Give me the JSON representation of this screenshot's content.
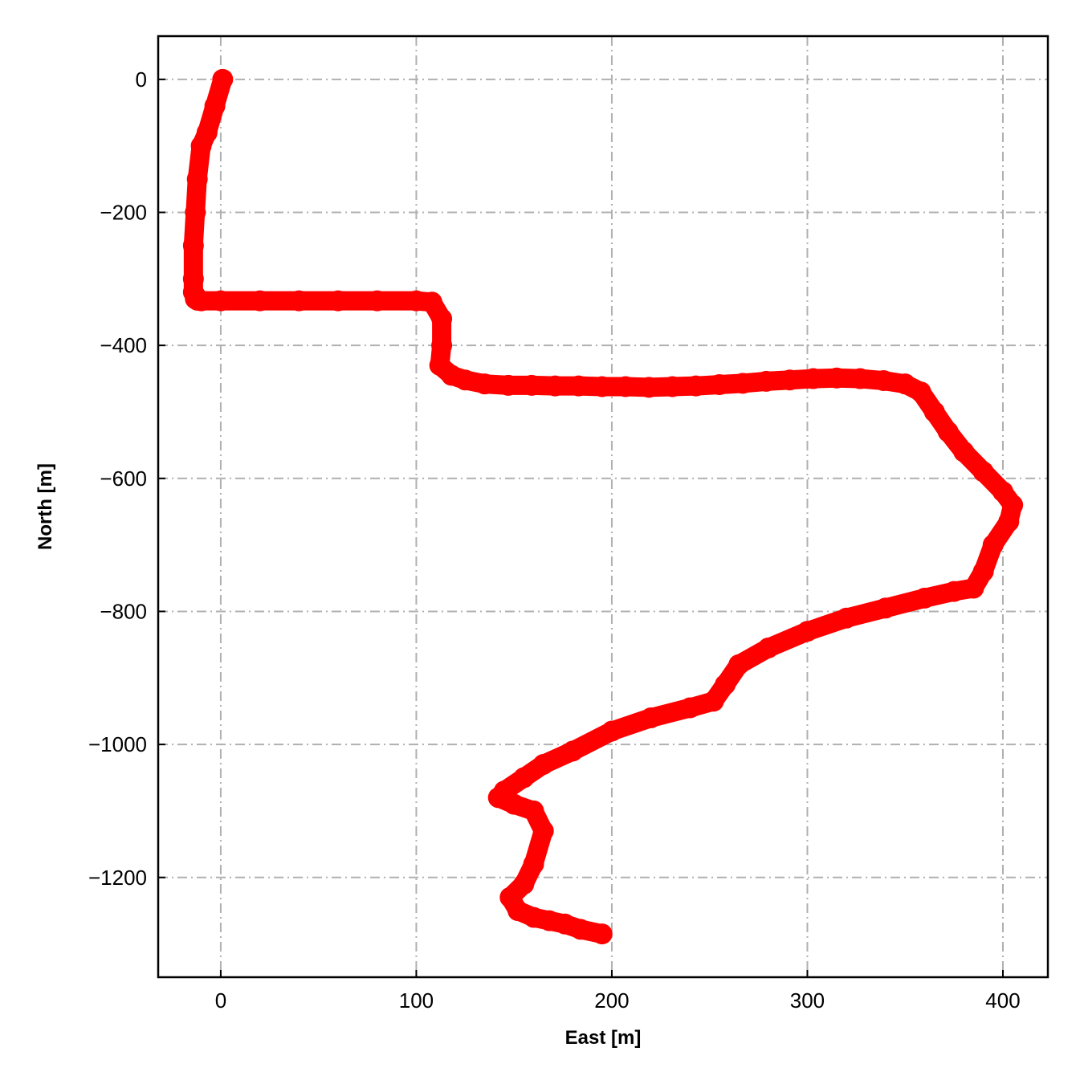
{
  "chart_data": {
    "type": "scatter",
    "xlabel": "East [m]",
    "ylabel": "North [m]",
    "xlim": [
      -32,
      423
    ],
    "ylim": [
      -1350,
      65
    ],
    "xticks": [
      0,
      100,
      200,
      300,
      400
    ],
    "yticks": [
      0,
      -200,
      -400,
      -600,
      -800,
      -1000,
      -1200
    ],
    "xtick_labels": [
      "0",
      "100",
      "200",
      "300",
      "400"
    ],
    "ytick_labels": [
      "0",
      "−200",
      "−400",
      "−600",
      "−800",
      "−1000",
      "−1200"
    ],
    "grid": true,
    "marker_color": "#ff0000",
    "series": [
      {
        "x": [
          1,
          -3,
          -7,
          -10,
          -12,
          -13,
          -14,
          -14,
          -14,
          -13,
          -13,
          -12,
          -10,
          0,
          20,
          40,
          60,
          80,
          100,
          108,
          113,
          113,
          112,
          118,
          125,
          135,
          147,
          159,
          171,
          183,
          195,
          207,
          219,
          231,
          243,
          255,
          267,
          279,
          291,
          303,
          315,
          327,
          339,
          350,
          358,
          365,
          372,
          380,
          390,
          400,
          405,
          403,
          395,
          390,
          385,
          375,
          360,
          340,
          320,
          300,
          280,
          265,
          258,
          252,
          240,
          220,
          200,
          180,
          165,
          155,
          145,
          142,
          150,
          160,
          165,
          160,
          155,
          148,
          152,
          160,
          168,
          176,
          184,
          195
        ],
        "y": [
          0,
          -40,
          -80,
          -100,
          -150,
          -200,
          -250,
          -300,
          -320,
          -325,
          -330,
          -332,
          -333,
          -333,
          -333,
          -333,
          -333,
          -333,
          -333,
          -335,
          -360,
          -400,
          -430,
          -445,
          -452,
          -458,
          -460,
          -460,
          -461,
          -461,
          -462,
          -462,
          -463,
          -462,
          -461,
          -459,
          -457,
          -454,
          -452,
          -450,
          -449,
          -450,
          -453,
          -458,
          -470,
          -500,
          -530,
          -560,
          -590,
          -620,
          -640,
          -665,
          -700,
          -740,
          -765,
          -770,
          -780,
          -795,
          -810,
          -830,
          -855,
          -880,
          -910,
          -935,
          -945,
          -960,
          -980,
          -1010,
          -1030,
          -1050,
          -1070,
          -1080,
          -1090,
          -1100,
          -1130,
          -1180,
          -1210,
          -1230,
          -1250,
          -1260,
          -1265,
          -1270,
          -1278,
          -1285
        ]
      }
    ]
  }
}
